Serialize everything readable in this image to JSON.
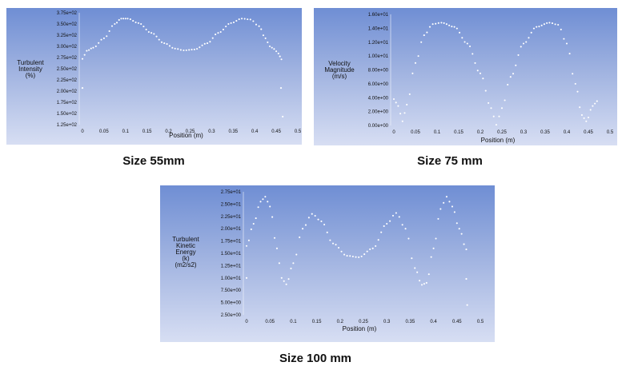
{
  "captions": [
    "Size 55mm",
    "Size 75 mm",
    "Size 100 mm"
  ],
  "chart_data": [
    {
      "type": "scatter",
      "xlabel": "Position (m)",
      "ylabel": [
        "Turbulent",
        "Intensity",
        "(%)"
      ],
      "x_ticks": [
        "0",
        "0.05",
        "0.1",
        "0.15",
        "0.2",
        "0.25",
        "0.3",
        "0.35",
        "0.4",
        "0.45",
        "0.5"
      ],
      "y_ticks": [
        "3.75e+02",
        "3.50e+02",
        "3.25e+02",
        "3.00e+02",
        "2.75e+02",
        "2.50e+02",
        "2.25e+02",
        "2.00e+02",
        "1.75e+02",
        "1.50e+02",
        "1.25e+02"
      ],
      "xlim": [
        0,
        0.5
      ],
      "ylim": [
        125,
        375
      ],
      "curve": [
        [
          0.0,
          272
        ],
        [
          0.01,
          290
        ],
        [
          0.025,
          297
        ],
        [
          0.05,
          318
        ],
        [
          0.075,
          350
        ],
        [
          0.09,
          362
        ],
        [
          0.105,
          362
        ],
        [
          0.13,
          352
        ],
        [
          0.16,
          330
        ],
        [
          0.19,
          307
        ],
        [
          0.215,
          295
        ],
        [
          0.235,
          291
        ],
        [
          0.26,
          293
        ],
        [
          0.29,
          307
        ],
        [
          0.315,
          330
        ],
        [
          0.345,
          352
        ],
        [
          0.37,
          362
        ],
        [
          0.39,
          360
        ],
        [
          0.41,
          345
        ],
        [
          0.425,
          318
        ],
        [
          0.435,
          300
        ],
        [
          0.445,
          294
        ],
        [
          0.455,
          284
        ],
        [
          0.462,
          271
        ]
      ],
      "outliers": [
        [
          0.0,
          207
        ],
        [
          0.461,
          207
        ],
        [
          0.465,
          143
        ]
      ]
    },
    {
      "type": "scatter",
      "xlabel": "Position (m)",
      "ylabel": [
        "Velocity",
        "Magnitude",
        "(m/s)"
      ],
      "x_ticks": [
        "0",
        "0.05",
        "0.1",
        "0.15",
        "0.2",
        "0.25",
        "0.3",
        "0.35",
        "0.4",
        "0.45",
        "0.5"
      ],
      "y_ticks": [
        "1.60e+01",
        "1.40e+01",
        "1.20e+01",
        "1.00e+01",
        "8.00e+00",
        "6.00e+00",
        "4.00e+00",
        "2.00e+00",
        "0.00e+00"
      ],
      "xlim": [
        0,
        0.5
      ],
      "ylim": [
        0,
        16
      ],
      "curve": [
        [
          0.0,
          3.8
        ],
        [
          0.01,
          2.8
        ],
        [
          0.02,
          0.6
        ],
        [
          0.03,
          3.0
        ],
        [
          0.05,
          9.0
        ],
        [
          0.07,
          13.0
        ],
        [
          0.09,
          14.6
        ],
        [
          0.11,
          14.8
        ],
        [
          0.14,
          14.2
        ],
        [
          0.17,
          11.8
        ],
        [
          0.2,
          7.5
        ],
        [
          0.225,
          2.5
        ],
        [
          0.237,
          0.1
        ],
        [
          0.25,
          2.5
        ],
        [
          0.27,
          7.0
        ],
        [
          0.3,
          11.8
        ],
        [
          0.33,
          14.2
        ],
        [
          0.36,
          14.8
        ],
        [
          0.38,
          14.5
        ],
        [
          0.4,
          11.8
        ],
        [
          0.42,
          6.0
        ],
        [
          0.435,
          1.5
        ],
        [
          0.445,
          0.6
        ],
        [
          0.46,
          2.8
        ],
        [
          0.47,
          3.5
        ]
      ],
      "outliers": []
    },
    {
      "type": "scatter",
      "xlabel": "Position (m)",
      "ylabel": [
        "Turbulent",
        "Kinetic",
        "Energy",
        "(k)",
        "(m2/s2)"
      ],
      "x_ticks": [
        "0",
        "0.05",
        "0.1",
        "0.15",
        "0.2",
        "0.25",
        "0.3",
        "0.35",
        "0.4",
        "0.45",
        "0.5"
      ],
      "y_ticks": [
        "2.75e+01",
        "2.50e+01",
        "2.25e+01",
        "2.00e+01",
        "1.75e+01",
        "1.50e+01",
        "1.25e+01",
        "1.00e+01",
        "7.50e+00",
        "5.00e+00",
        "2.50e+00"
      ],
      "xlim": [
        0,
        0.5
      ],
      "ylim": [
        2.5,
        27.5
      ],
      "curve": [
        [
          0.0,
          16.5
        ],
        [
          0.015,
          21
        ],
        [
          0.03,
          25.5
        ],
        [
          0.04,
          26.5
        ],
        [
          0.05,
          24.5
        ],
        [
          0.065,
          16
        ],
        [
          0.075,
          10
        ],
        [
          0.085,
          8.7
        ],
        [
          0.1,
          13
        ],
        [
          0.12,
          20
        ],
        [
          0.14,
          23
        ],
        [
          0.16,
          21.5
        ],
        [
          0.185,
          17
        ],
        [
          0.215,
          14.5
        ],
        [
          0.24,
          14.2
        ],
        [
          0.27,
          16
        ],
        [
          0.3,
          21
        ],
        [
          0.32,
          23.2
        ],
        [
          0.34,
          20
        ],
        [
          0.36,
          12
        ],
        [
          0.375,
          8.6
        ],
        [
          0.385,
          9
        ],
        [
          0.4,
          16
        ],
        [
          0.415,
          24
        ],
        [
          0.428,
          26.5
        ],
        [
          0.44,
          24.5
        ],
        [
          0.455,
          20
        ],
        [
          0.47,
          15.8
        ]
      ],
      "outliers": [
        [
          0.0,
          10
        ],
        [
          0.47,
          9.8
        ],
        [
          0.472,
          4.5
        ]
      ]
    }
  ]
}
